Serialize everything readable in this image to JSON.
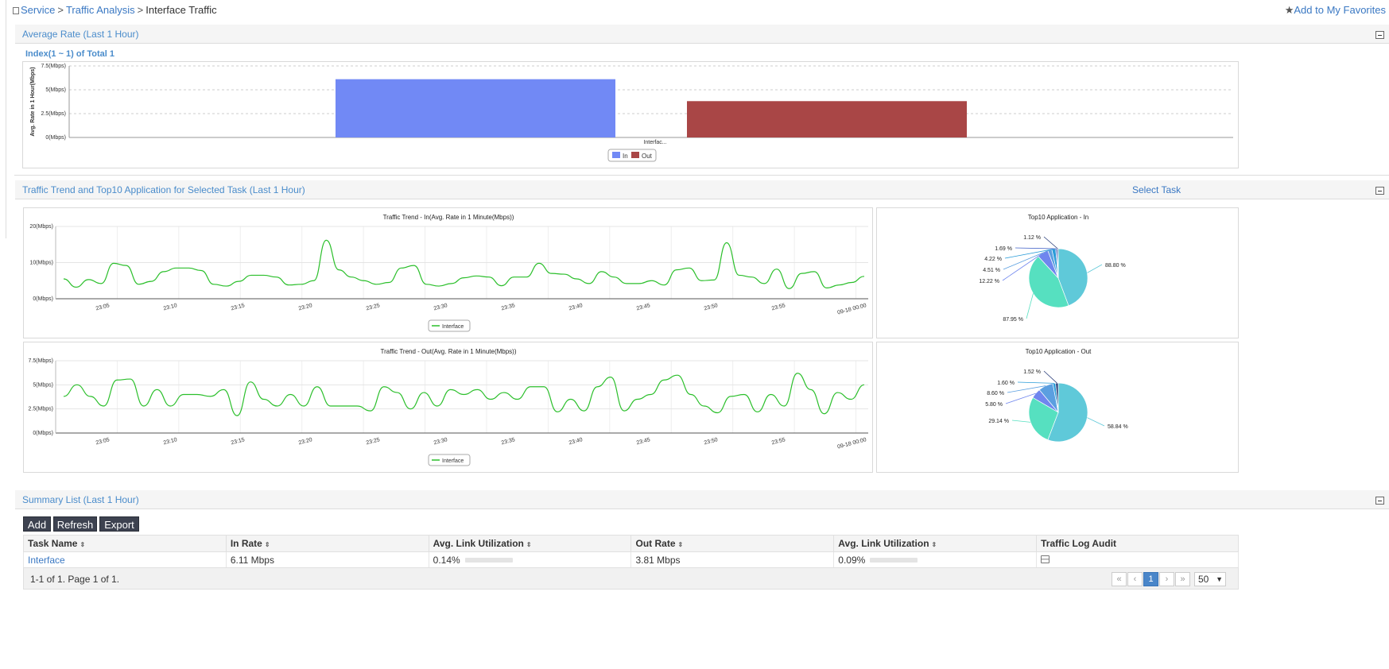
{
  "breadcrumb": {
    "items": [
      "Service",
      "Traffic Analysis"
    ],
    "current": "Interface Traffic",
    "sep": ">"
  },
  "favorites": "Add to My Favorites",
  "panel1": {
    "title": "Average Rate (Last 1 Hour)",
    "index_text": "Index(1 ~ 1) of Total 1",
    "chart": {
      "ylabel": "Avg. Rate in 1 Hour(Mbps)",
      "yticks": [
        "0(Mbps)",
        "2.5(Mbps)",
        "5(Mbps)",
        "7.5(Mbps)"
      ],
      "category": "Interfac...",
      "legend": [
        "In",
        "Out"
      ]
    }
  },
  "panel2": {
    "title": "Traffic Trend and Top10 Application for Selected Task (Last 1 Hour)",
    "select_task": "Select Task",
    "trend_in_title": "Traffic Trend - In(Avg. Rate in 1 Minute(Mbps))",
    "trend_out_title": "Traffic Trend - Out(Avg. Rate in 1 Minute(Mbps))",
    "trend_in_yticks": [
      "0(Mbps)",
      "10(Mbps)",
      "20(Mbps)"
    ],
    "trend_out_yticks": [
      "0(Mbps)",
      "2.5(Mbps)",
      "5(Mbps)",
      "7.5(Mbps)"
    ],
    "xticks": [
      "23:05",
      "23:10",
      "23:15",
      "23:20",
      "23:25",
      "23:30",
      "23:35",
      "23:40",
      "23:45",
      "23:50",
      "23:55",
      "09-18 00:00"
    ],
    "legend": "Interface",
    "top10_in_title": "Top10 Application - In",
    "top10_out_title": "Top10 Application - Out"
  },
  "chart_data": [
    {
      "type": "bar",
      "categories": [
        "Interfac..."
      ],
      "series": [
        {
          "name": "In",
          "values": [
            6.11
          ]
        },
        {
          "name": "Out",
          "values": [
            3.81
          ]
        }
      ],
      "ylabel": "Avg. Rate in 1 Hour(Mbps)",
      "ylim": [
        0,
        7.5
      ],
      "colors": [
        "#7189f5",
        "#a94646"
      ],
      "grid": true
    },
    {
      "type": "line",
      "title": "Traffic Trend - In(Avg. Rate in 1 Minute(Mbps))",
      "series": [
        {
          "name": "Interface",
          "values": [
            5.5,
            3.2,
            5.3,
            4.2,
            9.8,
            9.2,
            4.0,
            4.8,
            7.5,
            8.5,
            8.5,
            7.8,
            4.0,
            3.5,
            4.8,
            6.5,
            6.5,
            6.0,
            3.8,
            4.0,
            5.0,
            16.2,
            8.0,
            6.0,
            5.0,
            4.0,
            4.5,
            8.5,
            9.2,
            4.0,
            3.5,
            4.2,
            5.8,
            6.3,
            6.0,
            3.6,
            6.0,
            6.0,
            9.8,
            7.0,
            6.8,
            5.5,
            4.2,
            7.5,
            6.0,
            4.2,
            4.2,
            5.0,
            3.8,
            8.0,
            8.5,
            5.0,
            5.2,
            15.5,
            6.5,
            6.0,
            4.2,
            8.2,
            2.8,
            7.0,
            7.5,
            3.0,
            3.8,
            4.5,
            6.2
          ]
        }
      ],
      "ylim": [
        0,
        20
      ],
      "color": "#2bbf2b"
    },
    {
      "type": "line",
      "title": "Traffic Trend - Out(Avg. Rate in 1 Minute(Mbps))",
      "series": [
        {
          "name": "Interface",
          "values": [
            3.8,
            5.0,
            3.8,
            2.8,
            5.5,
            5.6,
            2.8,
            4.5,
            2.8,
            4.0,
            4.0,
            3.8,
            4.5,
            1.8,
            5.3,
            3.5,
            2.8,
            4.0,
            2.8,
            4.8,
            2.8,
            2.8,
            2.8,
            2.3,
            4.8,
            4.2,
            2.5,
            4.2,
            2.8,
            4.5,
            4.0,
            4.5,
            3.5,
            4.2,
            3.5,
            4.8,
            4.8,
            2.2,
            3.5,
            2.3,
            4.8,
            5.8,
            2.3,
            3.5,
            4.0,
            5.5,
            6.0,
            4.0,
            2.8,
            2.1,
            3.8,
            4.0,
            2.2,
            4.0,
            2.8,
            6.2,
            4.5,
            2.0,
            4.2,
            3.5,
            5.0
          ]
        }
      ],
      "ylim": [
        0,
        7.5
      ],
      "color": "#2bbf2b"
    },
    {
      "type": "pie",
      "title": "Top10 Application - In",
      "labels": [
        "88.80 %",
        "87.95 %",
        "12.22 %",
        "4.51 %",
        "4.22 %",
        "1.69 %",
        "1.12 %"
      ],
      "values": [
        88.8,
        87.95,
        12.22,
        4.51,
        4.22,
        1.69,
        1.12
      ],
      "colors": [
        "#5fc9d9",
        "#56e0c0",
        "#6f86ee",
        "#5b9fe0",
        "#2a9cd8",
        "#4464c8",
        "#2b3e7a"
      ]
    },
    {
      "type": "pie",
      "title": "Top10 Application - Out",
      "labels": [
        "58.84 %",
        "29.14 %",
        "5.80 %",
        "8.60 %",
        "1.60 %",
        "1.52 %"
      ],
      "values": [
        58.84,
        29.14,
        5.8,
        8.6,
        1.6,
        1.52
      ],
      "colors": [
        "#5fc9d9",
        "#56e0c0",
        "#6f86ee",
        "#5b9fe0",
        "#2a9cd8",
        "#2b3e7a"
      ]
    }
  ],
  "panel3": {
    "title": "Summary List (Last 1 Hour)",
    "buttons": [
      "Add",
      "Refresh",
      "Export"
    ],
    "columns": [
      "Task Name",
      "In Rate",
      "Avg. Link Utilization",
      "Out Rate",
      "Avg. Link Utilization",
      "Traffic Log Audit"
    ],
    "row": {
      "task": "Interface",
      "in_rate": "6.11 Mbps",
      "in_util": "0.14%",
      "out_rate": "3.81 Mbps",
      "out_util": "0.09%"
    },
    "pager_text": "1-1 of 1. Page 1 of 1.",
    "page": "1",
    "page_size": "50",
    "pager_icons": [
      "«",
      "‹",
      "›",
      "»"
    ]
  }
}
